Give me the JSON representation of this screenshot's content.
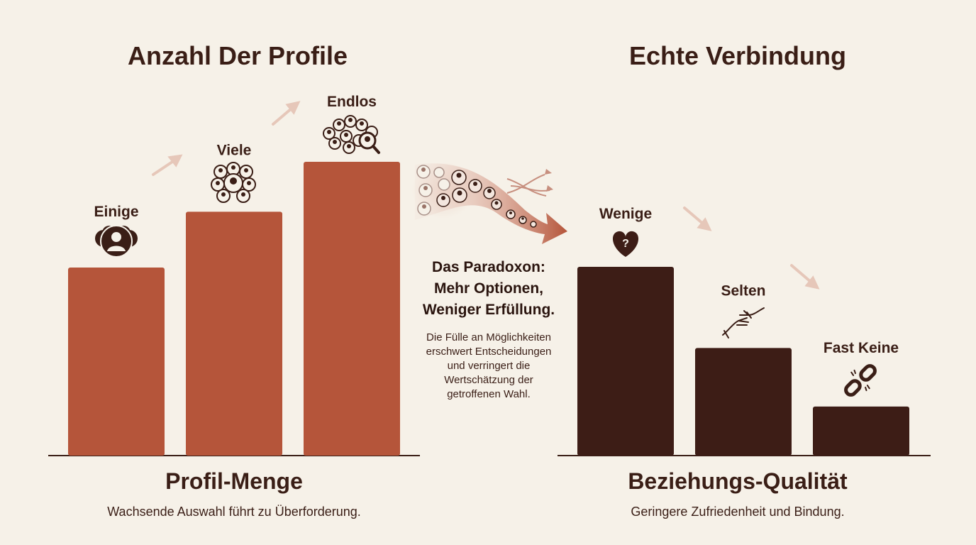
{
  "left_panel": {
    "title": "Anzahl Der Profile",
    "subtitle": "Profil-Menge",
    "caption": "Wachsende Auswahl führt zu Überforderung."
  },
  "right_panel": {
    "title": "Echte Verbindung",
    "subtitle": "Beziehungs-Qualität",
    "caption": "Geringere Zufriedenheit und Bindung."
  },
  "paradox": {
    "heading_lines": [
      "Das Paradoxon:",
      "Mehr Optionen,",
      "Weniger Erfüllung."
    ],
    "body_lines": [
      "Die Fülle an Möglichkeiten",
      "erschwert Entscheidungen",
      "und verringert die",
      "Wertschätzung der",
      "getroffenen Wahl."
    ]
  },
  "colors": {
    "background": "#f6f1e8",
    "left_bars": "#b5553a",
    "right_bars": "#3d1d16",
    "arrow": "#e8c6b8"
  },
  "icons": {
    "left": [
      "small-group-icon",
      "crowd-icon",
      "endless-crowd-search-icon"
    ],
    "right": [
      "heart-question-icon",
      "reaching-hands-icon",
      "broken-chain-icon"
    ]
  },
  "chart_data": [
    {
      "type": "bar",
      "title": "Anzahl Der Profile",
      "xlabel": "Profil-Menge",
      "categories": [
        "Einige",
        "Viele",
        "Endlos"
      ],
      "values": [
        0.64,
        0.83,
        1.0
      ],
      "ylim": [
        0,
        1
      ],
      "grid": false
    },
    {
      "type": "bar",
      "title": "Echte Verbindung",
      "xlabel": "Beziehungs-Qualität",
      "categories": [
        "Wenige",
        "Selten",
        "Fast Keine"
      ],
      "values": [
        1.0,
        0.57,
        0.26
      ],
      "ylim": [
        0,
        1
      ],
      "grid": false
    }
  ]
}
